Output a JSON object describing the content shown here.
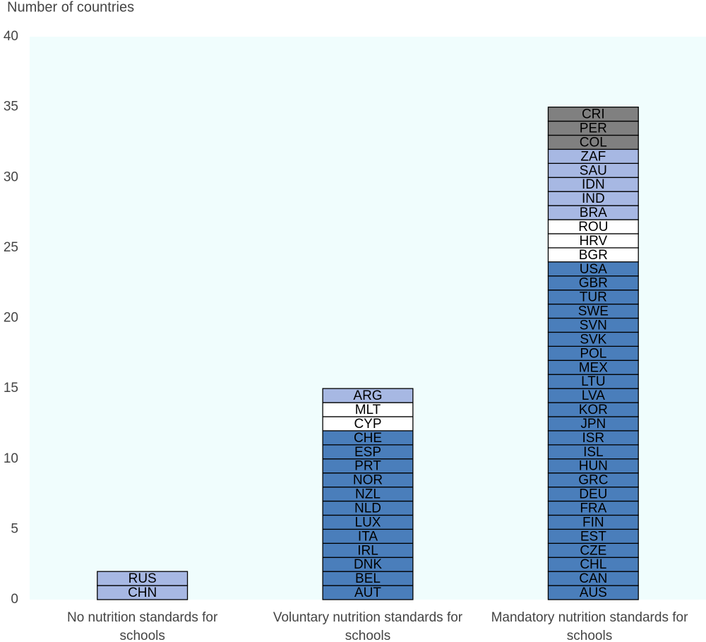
{
  "chart_data": {
    "type": "stacked-bar",
    "y_label": "Number of countries",
    "categories": [
      "No nutrition standards for schools",
      "Voluntary nutrition standards for schools",
      "Mandatory nutrition standards for schools"
    ],
    "stacks": [
      [
        {
          "label": "CHN",
          "value": 1,
          "color": "#a7b8e3"
        },
        {
          "label": "RUS",
          "value": 1,
          "color": "#a7b8e3"
        }
      ],
      [
        {
          "label": "AUT",
          "value": 1,
          "color": "#4a7ebb"
        },
        {
          "label": "BEL",
          "value": 1,
          "color": "#4a7ebb"
        },
        {
          "label": "DNK",
          "value": 1,
          "color": "#4a7ebb"
        },
        {
          "label": "IRL",
          "value": 1,
          "color": "#4a7ebb"
        },
        {
          "label": "ITA",
          "value": 1,
          "color": "#4a7ebb"
        },
        {
          "label": "LUX",
          "value": 1,
          "color": "#4a7ebb"
        },
        {
          "label": "NLD",
          "value": 1,
          "color": "#4a7ebb"
        },
        {
          "label": "NZL",
          "value": 1,
          "color": "#4a7ebb"
        },
        {
          "label": "NOR",
          "value": 1,
          "color": "#4a7ebb"
        },
        {
          "label": "PRT",
          "value": 1,
          "color": "#4a7ebb"
        },
        {
          "label": "ESP",
          "value": 1,
          "color": "#4a7ebb"
        },
        {
          "label": "CHE",
          "value": 1,
          "color": "#4a7ebb"
        },
        {
          "label": "CYP",
          "value": 1,
          "color": "#ffffff"
        },
        {
          "label": "MLT",
          "value": 1,
          "color": "#ffffff"
        },
        {
          "label": "ARG",
          "value": 1,
          "color": "#a7b8e3"
        }
      ],
      [
        {
          "label": "AUS",
          "value": 1,
          "color": "#4a7ebb"
        },
        {
          "label": "CAN",
          "value": 1,
          "color": "#4a7ebb"
        },
        {
          "label": "CHL",
          "value": 1,
          "color": "#4a7ebb"
        },
        {
          "label": "CZE",
          "value": 1,
          "color": "#4a7ebb"
        },
        {
          "label": "EST",
          "value": 1,
          "color": "#4a7ebb"
        },
        {
          "label": "FIN",
          "value": 1,
          "color": "#4a7ebb"
        },
        {
          "label": "FRA",
          "value": 1,
          "color": "#4a7ebb"
        },
        {
          "label": "DEU",
          "value": 1,
          "color": "#4a7ebb"
        },
        {
          "label": "GRC",
          "value": 1,
          "color": "#4a7ebb"
        },
        {
          "label": "HUN",
          "value": 1,
          "color": "#4a7ebb"
        },
        {
          "label": "ISL",
          "value": 1,
          "color": "#4a7ebb"
        },
        {
          "label": "ISR",
          "value": 1,
          "color": "#4a7ebb"
        },
        {
          "label": "JPN",
          "value": 1,
          "color": "#4a7ebb"
        },
        {
          "label": "KOR",
          "value": 1,
          "color": "#4a7ebb"
        },
        {
          "label": "LVA",
          "value": 1,
          "color": "#4a7ebb"
        },
        {
          "label": "LTU",
          "value": 1,
          "color": "#4a7ebb"
        },
        {
          "label": "MEX",
          "value": 1,
          "color": "#4a7ebb"
        },
        {
          "label": "POL",
          "value": 1,
          "color": "#4a7ebb"
        },
        {
          "label": "SVK",
          "value": 1,
          "color": "#4a7ebb"
        },
        {
          "label": "SVN",
          "value": 1,
          "color": "#4a7ebb"
        },
        {
          "label": "SWE",
          "value": 1,
          "color": "#4a7ebb"
        },
        {
          "label": "TUR",
          "value": 1,
          "color": "#4a7ebb"
        },
        {
          "label": "GBR",
          "value": 1,
          "color": "#4a7ebb"
        },
        {
          "label": "USA",
          "value": 1,
          "color": "#4a7ebb"
        },
        {
          "label": "BGR",
          "value": 1,
          "color": "#ffffff"
        },
        {
          "label": "HRV",
          "value": 1,
          "color": "#ffffff"
        },
        {
          "label": "ROU",
          "value": 1,
          "color": "#ffffff"
        },
        {
          "label": "BRA",
          "value": 1,
          "color": "#a7b8e3"
        },
        {
          "label": "IND",
          "value": 1,
          "color": "#a7b8e3"
        },
        {
          "label": "IDN",
          "value": 1,
          "color": "#a7b8e3"
        },
        {
          "label": "SAU",
          "value": 1,
          "color": "#a7b8e3"
        },
        {
          "label": "ZAF",
          "value": 1,
          "color": "#a7b8e3"
        },
        {
          "label": "COL",
          "value": 1,
          "color": "#808080"
        },
        {
          "label": "PER",
          "value": 1,
          "color": "#808080"
        },
        {
          "label": "CRI",
          "value": 1,
          "color": "#808080"
        }
      ]
    ],
    "ylim": [
      0,
      40
    ],
    "yticks": [
      0,
      5,
      10,
      15,
      20,
      25,
      30,
      35,
      40
    ],
    "plot_background": "#f0fdfd"
  }
}
